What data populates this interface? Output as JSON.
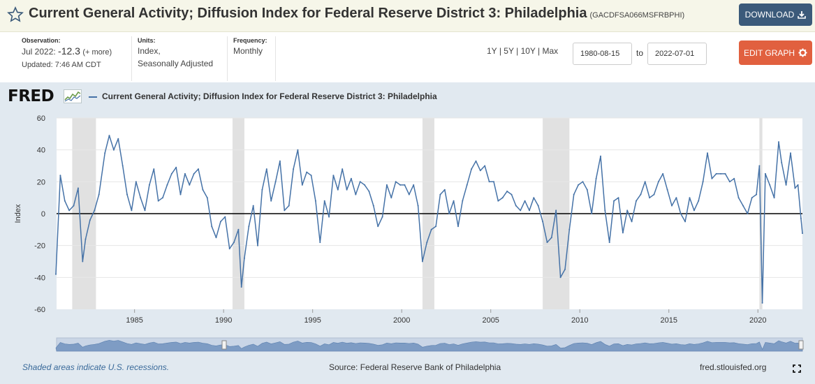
{
  "header": {
    "title": "Current General Activity; Diffusion Index for Federal Reserve District 3: Philadelphia",
    "series_id": "(GACDFSA066MSFRBPHI)",
    "download_label": "DOWNLOAD",
    "icons": {
      "favorite": "star-outline-icon",
      "download": "download-icon"
    }
  },
  "meta": {
    "observation_label": "Observation:",
    "observation_period": "Jul 2022:",
    "observation_value": "-12.3",
    "observation_more": "(+ more)",
    "updated": "Updated: 7:46 AM CDT",
    "units_label": "Units:",
    "units_line1": "Index,",
    "units_line2": "Seasonally Adjusted",
    "frequency_label": "Frequency:",
    "frequency_value": "Monthly"
  },
  "controls": {
    "range_1y": "1Y",
    "range_5y": "5Y",
    "range_10y": "10Y",
    "range_max": "Max",
    "sep": "|",
    "start_date": "1980-08-15",
    "to_label": "to",
    "end_date": "2022-07-01",
    "edit_label": "EDIT GRAPH",
    "icons": {
      "edit": "gear-icon",
      "fullscreen": "fullscreen-icon"
    }
  },
  "logo": {
    "text": "FRED",
    "icon": "fred-spark-icon"
  },
  "legend": {
    "series_name": "Current General Activity; Diffusion Index for Federal Reserve District 3: Philadelphia"
  },
  "footer": {
    "recession_note": "Shaded areas indicate U.S. recessions.",
    "source": "Source: Federal Reserve Bank of Philadelphia",
    "site": "fred.stlouisfed.org"
  },
  "colors": {
    "series": "#4572a7",
    "recession": "#e1e1e1",
    "panel": "#e1e9f0",
    "download_button": "#3b5a7a",
    "edit_button": "#e1603f"
  },
  "chart_data": {
    "type": "line",
    "ylabel": "Index",
    "xlabel": "",
    "ylim": [
      -60,
      60
    ],
    "yticks": [
      60,
      40,
      20,
      0,
      -20,
      -40,
      -60
    ],
    "xticks": [
      "1985",
      "1990",
      "1995",
      "2000",
      "2005",
      "2010",
      "2015",
      "2020"
    ],
    "xlim": [
      "1980-08-15",
      "2022-07-01"
    ],
    "zero_line": true,
    "recessions": [
      [
        "1981-07",
        "1982-11"
      ],
      [
        "1990-07",
        "1991-03"
      ],
      [
        "2001-03",
        "2001-11"
      ],
      [
        "2007-12",
        "2009-06"
      ],
      [
        "2020-02",
        "2020-04"
      ]
    ],
    "series": [
      {
        "name": "Current General Activity; Diffusion Index for Federal Reserve District 3: Philadelphia",
        "points": [
          [
            "1980-08",
            -38
          ],
          [
            "1980-11",
            24
          ],
          [
            "1981-02",
            8
          ],
          [
            "1981-05",
            2
          ],
          [
            "1981-08",
            5
          ],
          [
            "1981-11",
            16
          ],
          [
            "1982-02",
            -30
          ],
          [
            "1982-04",
            -16
          ],
          [
            "1982-07",
            -4
          ],
          [
            "1982-10",
            2
          ],
          [
            "1983-01",
            12
          ],
          [
            "1983-05",
            38
          ],
          [
            "1983-08",
            49
          ],
          [
            "1983-11",
            40
          ],
          [
            "1984-02",
            47
          ],
          [
            "1984-05",
            30
          ],
          [
            "1984-08",
            12
          ],
          [
            "1984-11",
            2
          ],
          [
            "1985-02",
            20
          ],
          [
            "1985-05",
            10
          ],
          [
            "1985-08",
            2
          ],
          [
            "1985-11",
            18
          ],
          [
            "1986-02",
            28
          ],
          [
            "1986-05",
            8
          ],
          [
            "1986-08",
            10
          ],
          [
            "1986-11",
            18
          ],
          [
            "1987-02",
            25
          ],
          [
            "1987-05",
            29
          ],
          [
            "1987-08",
            12
          ],
          [
            "1987-11",
            25
          ],
          [
            "1988-02",
            18
          ],
          [
            "1988-05",
            25
          ],
          [
            "1988-08",
            28
          ],
          [
            "1988-11",
            15
          ],
          [
            "1989-02",
            10
          ],
          [
            "1989-05",
            -8
          ],
          [
            "1989-08",
            -15
          ],
          [
            "1989-11",
            -5
          ],
          [
            "1990-02",
            -2
          ],
          [
            "1990-05",
            -22
          ],
          [
            "1990-08",
            -18
          ],
          [
            "1990-11",
            -10
          ],
          [
            "1991-01",
            -46
          ],
          [
            "1991-03",
            -28
          ],
          [
            "1991-06",
            -8
          ],
          [
            "1991-09",
            5
          ],
          [
            "1991-12",
            -20
          ],
          [
            "1992-03",
            15
          ],
          [
            "1992-06",
            28
          ],
          [
            "1992-09",
            8
          ],
          [
            "1992-12",
            20
          ],
          [
            "1993-03",
            33
          ],
          [
            "1993-06",
            2
          ],
          [
            "1993-09",
            5
          ],
          [
            "1993-12",
            28
          ],
          [
            "1994-03",
            40
          ],
          [
            "1994-06",
            18
          ],
          [
            "1994-09",
            26
          ],
          [
            "1994-12",
            24
          ],
          [
            "1995-03",
            8
          ],
          [
            "1995-06",
            -18
          ],
          [
            "1995-09",
            8
          ],
          [
            "1995-12",
            -2
          ],
          [
            "1996-03",
            24
          ],
          [
            "1996-06",
            15
          ],
          [
            "1996-09",
            28
          ],
          [
            "1996-12",
            15
          ],
          [
            "1997-03",
            22
          ],
          [
            "1997-06",
            12
          ],
          [
            "1997-09",
            20
          ],
          [
            "1997-12",
            18
          ],
          [
            "1998-03",
            14
          ],
          [
            "1998-06",
            5
          ],
          [
            "1998-09",
            -8
          ],
          [
            "1998-12",
            -2
          ],
          [
            "1999-03",
            18
          ],
          [
            "1999-06",
            10
          ],
          [
            "1999-09",
            20
          ],
          [
            "1999-12",
            18
          ],
          [
            "2000-03",
            18
          ],
          [
            "2000-06",
            12
          ],
          [
            "2000-09",
            18
          ],
          [
            "2000-12",
            5
          ],
          [
            "2001-03",
            -30
          ],
          [
            "2001-06",
            -18
          ],
          [
            "2001-09",
            -10
          ],
          [
            "2001-12",
            -8
          ],
          [
            "2002-03",
            12
          ],
          [
            "2002-06",
            15
          ],
          [
            "2002-09",
            0
          ],
          [
            "2002-12",
            8
          ],
          [
            "2003-03",
            -8
          ],
          [
            "2003-06",
            8
          ],
          [
            "2003-09",
            18
          ],
          [
            "2003-12",
            28
          ],
          [
            "2004-03",
            33
          ],
          [
            "2004-06",
            27
          ],
          [
            "2004-09",
            30
          ],
          [
            "2004-12",
            20
          ],
          [
            "2005-03",
            20
          ],
          [
            "2005-06",
            8
          ],
          [
            "2005-09",
            10
          ],
          [
            "2005-12",
            14
          ],
          [
            "2006-03",
            12
          ],
          [
            "2006-06",
            5
          ],
          [
            "2006-09",
            2
          ],
          [
            "2006-12",
            8
          ],
          [
            "2007-03",
            2
          ],
          [
            "2007-06",
            10
          ],
          [
            "2007-09",
            5
          ],
          [
            "2007-12",
            -5
          ],
          [
            "2008-03",
            -18
          ],
          [
            "2008-06",
            -15
          ],
          [
            "2008-09",
            2
          ],
          [
            "2008-12",
            -40
          ],
          [
            "2009-03",
            -35
          ],
          [
            "2009-06",
            -10
          ],
          [
            "2009-09",
            12
          ],
          [
            "2009-12",
            18
          ],
          [
            "2010-03",
            20
          ],
          [
            "2010-06",
            15
          ],
          [
            "2010-09",
            0
          ],
          [
            "2010-12",
            22
          ],
          [
            "2011-03",
            36
          ],
          [
            "2011-06",
            2
          ],
          [
            "2011-09",
            -18
          ],
          [
            "2011-12",
            8
          ],
          [
            "2012-03",
            10
          ],
          [
            "2012-06",
            -12
          ],
          [
            "2012-09",
            2
          ],
          [
            "2012-12",
            -5
          ],
          [
            "2013-03",
            8
          ],
          [
            "2013-06",
            12
          ],
          [
            "2013-09",
            20
          ],
          [
            "2013-12",
            10
          ],
          [
            "2014-03",
            12
          ],
          [
            "2014-06",
            20
          ],
          [
            "2014-09",
            25
          ],
          [
            "2014-12",
            15
          ],
          [
            "2015-03",
            5
          ],
          [
            "2015-06",
            10
          ],
          [
            "2015-09",
            0
          ],
          [
            "2015-12",
            -5
          ],
          [
            "2016-03",
            10
          ],
          [
            "2016-06",
            2
          ],
          [
            "2016-09",
            8
          ],
          [
            "2016-12",
            20
          ],
          [
            "2017-03",
            38
          ],
          [
            "2017-06",
            22
          ],
          [
            "2017-09",
            25
          ],
          [
            "2017-12",
            25
          ],
          [
            "2018-03",
            25
          ],
          [
            "2018-06",
            20
          ],
          [
            "2018-09",
            22
          ],
          [
            "2018-12",
            10
          ],
          [
            "2019-03",
            5
          ],
          [
            "2019-06",
            0
          ],
          [
            "2019-09",
            10
          ],
          [
            "2019-12",
            12
          ],
          [
            "2020-02",
            30
          ],
          [
            "2020-04",
            -56
          ],
          [
            "2020-06",
            25
          ],
          [
            "2020-09",
            18
          ],
          [
            "2020-12",
            10
          ],
          [
            "2021-03",
            45
          ],
          [
            "2021-05",
            32
          ],
          [
            "2021-08",
            18
          ],
          [
            "2021-11",
            38
          ],
          [
            "2022-02",
            16
          ],
          [
            "2022-04",
            18
          ],
          [
            "2022-06",
            -3
          ],
          [
            "2022-07",
            -12.3
          ]
        ]
      }
    ]
  }
}
